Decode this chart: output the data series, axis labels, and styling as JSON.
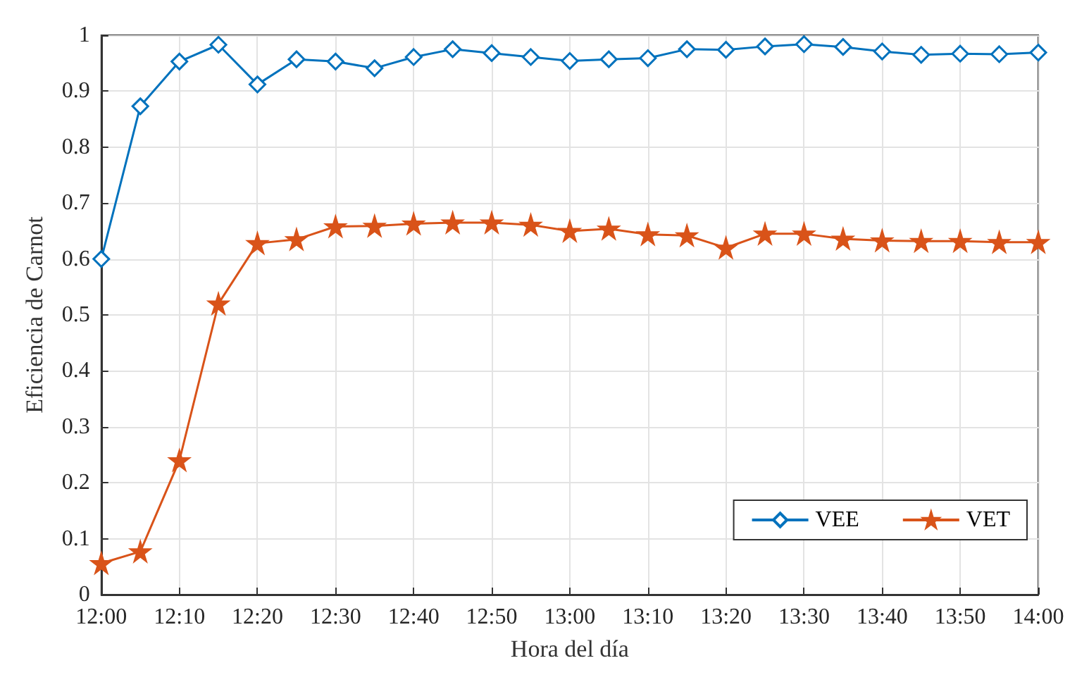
{
  "chart_data": {
    "type": "line",
    "xlabel": "Hora del día",
    "ylabel": "Eficiencia de Carnot",
    "x": [
      12,
      12.0833,
      12.1667,
      12.25,
      12.3333,
      12.4167,
      12.5,
      12.5833,
      12.6667,
      12.75,
      12.8333,
      12.9167,
      13,
      13.0833,
      13.1667,
      13.25,
      13.3333,
      13.4167,
      13.5,
      13.5833,
      13.6667,
      13.75,
      13.8333,
      13.9167,
      14
    ],
    "series": [
      {
        "name": "VEE",
        "color": "#0072bd",
        "marker": "diamond",
        "values": [
          0.6,
          0.873,
          0.953,
          0.983,
          0.912,
          0.957,
          0.953,
          0.941,
          0.961,
          0.975,
          0.968,
          0.961,
          0.954,
          0.957,
          0.959,
          0.975,
          0.974,
          0.98,
          0.984,
          0.979,
          0.971,
          0.965,
          0.967,
          0.966,
          0.969
        ]
      },
      {
        "name": "VET",
        "color": "#d95319",
        "marker": "star",
        "values": [
          0.056,
          0.077,
          0.24,
          0.52,
          0.628,
          0.635,
          0.658,
          0.659,
          0.663,
          0.665,
          0.665,
          0.661,
          0.65,
          0.654,
          0.644,
          0.642,
          0.62,
          0.645,
          0.645,
          0.636,
          0.633,
          0.632,
          0.632,
          0.63,
          0.63
        ]
      }
    ],
    "xlim": [
      12,
      14
    ],
    "xticks": [
      {
        "value": 12,
        "label": "12:00"
      },
      {
        "value": 12.1667,
        "label": "12:10"
      },
      {
        "value": 12.3333,
        "label": "12:20"
      },
      {
        "value": 12.5,
        "label": "12:30"
      },
      {
        "value": 12.6667,
        "label": "12:40"
      },
      {
        "value": 12.8333,
        "label": "12:50"
      },
      {
        "value": 13,
        "label": "13:00"
      },
      {
        "value": 13.1667,
        "label": "13:10"
      },
      {
        "value": 13.3333,
        "label": "13:20"
      },
      {
        "value": 13.5,
        "label": "13:30"
      },
      {
        "value": 13.6667,
        "label": "13:40"
      },
      {
        "value": 13.8333,
        "label": "13:50"
      },
      {
        "value": 14,
        "label": "14:00"
      }
    ],
    "ylim": [
      0,
      1
    ],
    "yticks": [
      0,
      0.1,
      0.2,
      0.3,
      0.4,
      0.5,
      0.6,
      0.7,
      0.8,
      0.9,
      1
    ],
    "grid": true,
    "legend": "bottom right",
    "line_style": "solid"
  }
}
